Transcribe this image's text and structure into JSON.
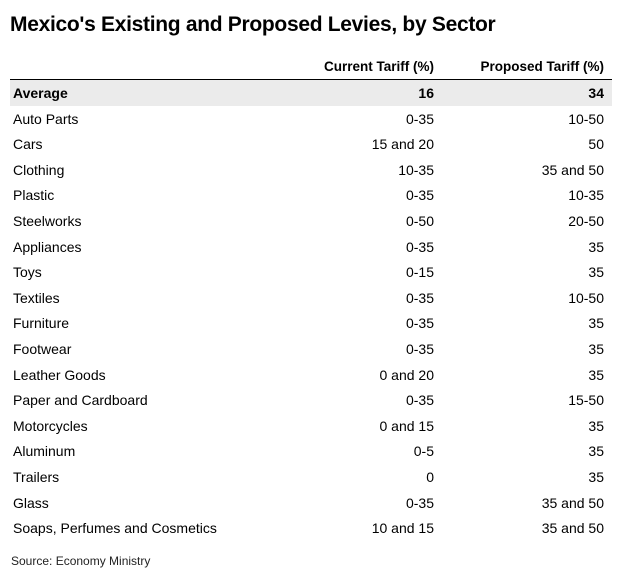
{
  "title": "Mexico's Existing and Proposed Levies, by Sector",
  "table": {
    "columns": {
      "sector": "",
      "current": "Current Tariff (%)",
      "proposed": "Proposed Tariff (%)"
    },
    "rows": [
      {
        "sector": "Average",
        "current": "16",
        "proposed": "34"
      },
      {
        "sector": "Auto Parts",
        "current": "0-35",
        "proposed": "10-50"
      },
      {
        "sector": "Cars",
        "current": "15 and 20",
        "proposed": "50"
      },
      {
        "sector": "Clothing",
        "current": "10-35",
        "proposed": "35 and 50"
      },
      {
        "sector": "Plastic",
        "current": "0-35",
        "proposed": "10-35"
      },
      {
        "sector": "Steelworks",
        "current": "0-50",
        "proposed": "20-50"
      },
      {
        "sector": "Appliances",
        "current": "0-35",
        "proposed": "35"
      },
      {
        "sector": "Toys",
        "current": "0-15",
        "proposed": "35"
      },
      {
        "sector": "Textiles",
        "current": "0-35",
        "proposed": "10-50"
      },
      {
        "sector": "Furniture",
        "current": "0-35",
        "proposed": "35"
      },
      {
        "sector": "Footwear",
        "current": "0-35",
        "proposed": "35"
      },
      {
        "sector": "Leather Goods",
        "current": "0 and 20",
        "proposed": "35"
      },
      {
        "sector": "Paper and Cardboard",
        "current": "0-35",
        "proposed": "15-50"
      },
      {
        "sector": "Motorcycles",
        "current": "0 and 15",
        "proposed": "35"
      },
      {
        "sector": "Aluminum",
        "current": "0-5",
        "proposed": "35"
      },
      {
        "sector": "Trailers",
        "current": "0",
        "proposed": "35"
      },
      {
        "sector": "Glass",
        "current": "0-35",
        "proposed": "35 and 50"
      },
      {
        "sector": "Soaps, Perfumes and Cosmetics",
        "current": "10 and 15",
        "proposed": "35 and 50"
      }
    ]
  },
  "source": "Source: Economy Ministry"
}
